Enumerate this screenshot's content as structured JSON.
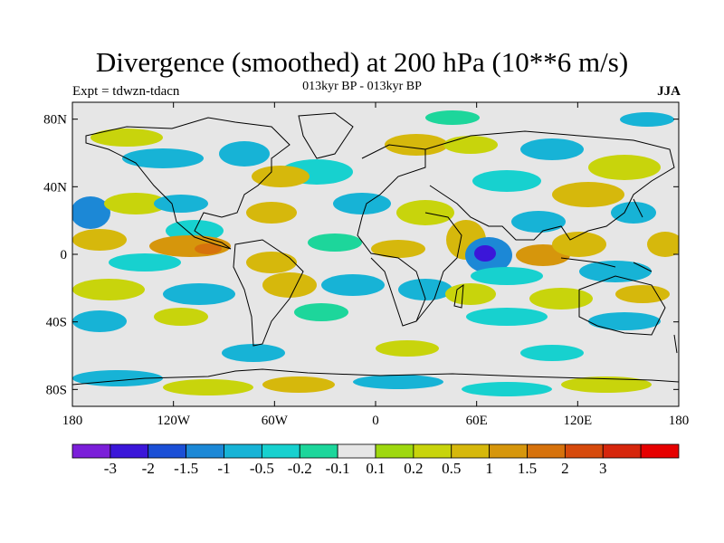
{
  "title": "Divergence (smoothed) at 200 hPa (10**6 m/s)",
  "subtitle": "013kyr BP - 013kyr BP",
  "experiment": "Expt = tdwzn-tdacn",
  "season": "JJA",
  "map": {
    "lon_range": [
      -180,
      180
    ],
    "lat_range": [
      -90,
      90
    ],
    "ocean_neutral_color": "#e6e6e6",
    "lat_ticks": [
      {
        "lat": 80,
        "label": "80N"
      },
      {
        "lat": 40,
        "label": "40N"
      },
      {
        "lat": 0,
        "label": "0"
      },
      {
        "lat": -40,
        "label": "40S"
      },
      {
        "lat": -80,
        "label": "80S"
      }
    ],
    "lon_ticks": [
      {
        "lon": -180,
        "label": "180"
      },
      {
        "lon": -120,
        "label": "120W"
      },
      {
        "lon": -60,
        "label": "60W"
      },
      {
        "lon": 0,
        "label": "0"
      },
      {
        "lon": 60,
        "label": "60E"
      },
      {
        "lon": 120,
        "label": "120E"
      },
      {
        "lon": 180,
        "label": "180"
      }
    ]
  },
  "colorbar": {
    "colors": [
      "#7b1fd9",
      "#3b16d9",
      "#1b4fd6",
      "#1c88d6",
      "#17b3d6",
      "#17d1cf",
      "#1dd69b",
      "#e6e6e6",
      "#9ed80f",
      "#c8d40c",
      "#d6b80c",
      "#d6960c",
      "#d6720c",
      "#d64a0c",
      "#d6260c",
      "#e60000"
    ],
    "labels": [
      "-3",
      "-2",
      "-1.5",
      "-1",
      "-0.5",
      "-0.2",
      "-0.1",
      "0.1",
      "0.2",
      "0.5",
      "1",
      "1.5",
      "2",
      "3"
    ]
  }
}
